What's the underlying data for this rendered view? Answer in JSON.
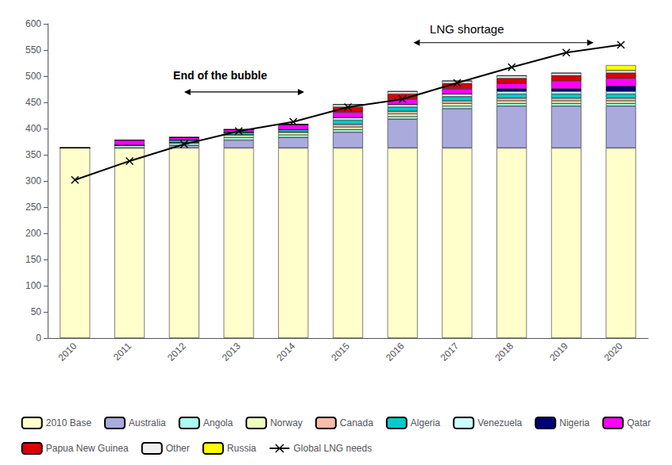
{
  "chart_data": {
    "type": "bar",
    "stacked": true,
    "categories": [
      "2010",
      "2011",
      "2012",
      "2013",
      "2014",
      "2015",
      "2016",
      "2017",
      "2018",
      "2019",
      "2020"
    ],
    "series": [
      {
        "name": "2010 Base",
        "color": "#FFFFCC",
        "values": [
          363,
          363,
          363,
          363,
          363,
          363,
          363,
          363,
          363,
          363,
          363
        ]
      },
      {
        "name": "Australia",
        "color": "#AAAADD",
        "values": [
          0,
          0,
          5,
          15,
          20,
          30,
          55,
          75,
          80,
          80,
          80
        ]
      },
      {
        "name": "Angola",
        "color": "#AAFFEE",
        "values": [
          0,
          5,
          5,
          5,
          5,
          5,
          5,
          5,
          5,
          5,
          5
        ]
      },
      {
        "name": "Norway",
        "color": "#EEFFBB",
        "values": [
          0,
          0,
          0,
          5,
          5,
          5,
          5,
          5,
          5,
          5,
          5
        ]
      },
      {
        "name": "Canada",
        "color": "#FFBBAA",
        "values": [
          0,
          0,
          0,
          0,
          0,
          5,
          5,
          5,
          5,
          5,
          5
        ]
      },
      {
        "name": "Algeria",
        "color": "#00CCCC",
        "values": [
          0,
          0,
          5,
          5,
          5,
          8,
          8,
          8,
          8,
          8,
          8
        ]
      },
      {
        "name": "Venezuela",
        "color": "#CCFFFF",
        "values": [
          0,
          0,
          0,
          0,
          0,
          5,
          5,
          5,
          5,
          5,
          5
        ]
      },
      {
        "name": "Nigeria",
        "color": "#000077",
        "values": [
          0,
          0,
          0,
          0,
          0,
          0,
          0,
          0,
          5,
          5,
          10
        ]
      },
      {
        "name": "Qatar",
        "color": "#FF00FF",
        "values": [
          0,
          10,
          5,
          5,
          10,
          10,
          10,
          10,
          10,
          15,
          15
        ]
      },
      {
        "name": "Papua New Guinea",
        "color": "#DD0000",
        "values": [
          0,
          0,
          0,
          0,
          0,
          10,
          10,
          10,
          10,
          10,
          10
        ]
      },
      {
        "name": "Other",
        "color": "#F0F0F0",
        "values": [
          0,
          0,
          0,
          0,
          0,
          5,
          5,
          5,
          5,
          5,
          5
        ]
      },
      {
        "name": "Russia",
        "color": "#FFFF00",
        "values": [
          0,
          0,
          0,
          0,
          0,
          0,
          0,
          0,
          0,
          0,
          10
        ]
      },
      {
        "name": "Global LNG needs",
        "type": "line",
        "color": "#000000",
        "marker": "x",
        "line_style": "solid",
        "values": [
          302,
          338,
          370,
          395,
          413,
          441,
          456,
          487,
          517,
          545,
          560
        ]
      }
    ],
    "ylim": [
      0,
      600
    ],
    "yticks": [
      0,
      50,
      100,
      150,
      200,
      250,
      300,
      350,
      400,
      450,
      500,
      550,
      600
    ],
    "grid": false,
    "legend": "bottom",
    "annotations": [
      "End of the bubble",
      "LNG shortage"
    ]
  }
}
